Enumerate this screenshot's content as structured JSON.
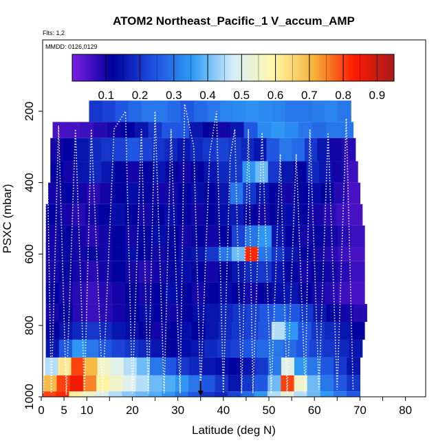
{
  "chart_data": {
    "type": "heatmap",
    "title": "ATOM2 Northeast_Pacific_1 V_accum_AMP",
    "flights_label": "Flts: 1,2",
    "dates_label": "MMDD: 0126,0129",
    "xlabel": "Latitude (deg N)",
    "ylabel": "PSXC (mbar)",
    "xlim": [
      0,
      85
    ],
    "ylim": [
      1000,
      0
    ],
    "x_ticks": [
      0,
      5,
      10,
      20,
      30,
      40,
      50,
      60,
      70,
      80
    ],
    "x_minor_ticks": [
      15,
      25,
      35,
      45,
      55,
      65,
      75
    ],
    "y_ticks": [
      200,
      400,
      600,
      800,
      1000
    ],
    "colorbar": {
      "range": [
        0.0,
        0.95
      ],
      "ticks": [
        0.1,
        0.2,
        0.3,
        0.4,
        0.5,
        0.6,
        0.7,
        0.8,
        0.9
      ],
      "colors": [
        "#7a1fe0",
        "#00009e",
        "#1e4fe0",
        "#2f9bf4",
        "#d6eefb",
        "#fff6a8",
        "#f5b33a",
        "#ff1a00",
        "#a81b1b"
      ]
    },
    "arrow_latitude": 35,
    "layers": [
      {
        "p_top": 170,
        "p_bot": 230,
        "x0": 10.5,
        "x1": 68.0,
        "values": [
          0.2,
          0.22,
          0.25,
          0.28,
          0.3,
          0.3,
          0.28,
          0.25,
          0.28,
          0.3,
          0.32,
          0.33,
          0.34,
          0.33,
          0.32,
          0.3,
          0.3,
          0.31,
          0.32,
          0.3
        ]
      },
      {
        "p_top": 230,
        "p_bot": 275,
        "x0": 2.5,
        "x1": 68.5,
        "values": [
          0.05,
          0.05,
          0.06,
          0.08,
          0.1,
          0.12,
          0.15,
          0.2,
          0.25,
          0.25,
          0.15,
          0.12,
          0.1,
          0.15,
          0.25,
          0.33,
          0.35,
          0.33,
          0.3,
          0.28,
          0.3,
          0.3
        ]
      },
      {
        "p_top": 275,
        "p_bot": 340,
        "x0": 2.0,
        "x1": 69.0,
        "values": [
          0.1,
          0.12,
          0.15,
          0.18,
          0.2,
          0.22,
          0.25,
          0.22,
          0.2,
          0.18,
          0.15,
          0.18,
          0.2,
          0.22,
          0.2,
          0.18,
          0.15,
          0.25,
          0.3,
          0.28,
          0.2,
          0.15,
          0.1,
          0.08
        ]
      },
      {
        "p_top": 340,
        "p_bot": 400,
        "x0": 2.0,
        "x1": 69.5,
        "values": [
          0.12,
          0.1,
          0.15,
          0.18,
          0.15,
          0.12,
          0.1,
          0.12,
          0.15,
          0.12,
          0.1,
          0.12,
          0.15,
          0.18,
          0.2,
          0.35,
          0.4,
          0.2,
          0.15,
          0.12,
          0.18,
          0.15,
          0.1,
          0.06
        ]
      },
      {
        "p_top": 400,
        "p_bot": 460,
        "x0": 1.5,
        "x1": 70.0,
        "values": [
          0.1,
          0.12,
          0.1,
          0.08,
          0.1,
          0.12,
          0.14,
          0.12,
          0.1,
          0.1,
          0.12,
          0.14,
          0.12,
          0.15,
          0.3,
          0.2,
          0.15,
          0.12,
          0.1,
          0.12,
          0.14,
          0.12,
          0.08,
          0.05
        ]
      },
      {
        "p_top": 460,
        "p_bot": 520,
        "x0": 1.0,
        "x1": 70.5,
        "values": [
          0.12,
          0.1,
          0.08,
          0.1,
          0.12,
          0.14,
          0.12,
          0.1,
          0.12,
          0.14,
          0.12,
          0.1,
          0.12,
          0.14,
          0.16,
          0.12,
          0.1,
          0.12,
          0.14,
          0.12,
          0.1,
          0.08,
          0.06,
          0.05
        ]
      },
      {
        "p_top": 520,
        "p_bot": 580,
        "x0": 1.0,
        "x1": 71.0,
        "values": [
          0.1,
          0.12,
          0.1,
          0.08,
          0.1,
          0.12,
          0.1,
          0.12,
          0.14,
          0.12,
          0.1,
          0.12,
          0.1,
          0.12,
          0.22,
          0.3,
          0.35,
          0.15,
          0.12,
          0.1,
          0.12,
          0.1,
          0.08,
          0.06
        ]
      },
      {
        "p_top": 580,
        "p_bot": 620,
        "x0": 1.0,
        "x1": 71.0,
        "values": [
          0.1,
          0.12,
          0.1,
          0.12,
          0.1,
          0.12,
          0.14,
          0.12,
          0.1,
          0.12,
          0.14,
          0.15,
          0.2,
          0.3,
          0.4,
          0.82,
          0.3,
          0.2,
          0.15,
          0.12,
          0.1,
          0.08,
          0.06,
          0.05
        ]
      },
      {
        "p_top": 620,
        "p_bot": 680,
        "x0": 1.0,
        "x1": 71.0,
        "values": [
          0.1,
          0.12,
          0.1,
          0.08,
          0.1,
          0.12,
          0.1,
          0.08,
          0.1,
          0.12,
          0.14,
          0.12,
          0.1,
          0.12,
          0.15,
          0.18,
          0.2,
          0.15,
          0.12,
          0.1,
          0.12,
          0.1,
          0.08,
          0.06
        ]
      },
      {
        "p_top": 680,
        "p_bot": 740,
        "x0": 1.0,
        "x1": 71.0,
        "values": [
          0.12,
          0.1,
          0.08,
          0.06,
          0.08,
          0.1,
          0.12,
          0.1,
          0.12,
          0.14,
          0.12,
          0.1,
          0.12,
          0.14,
          0.12,
          0.1,
          0.12,
          0.14,
          0.15,
          0.12,
          0.1,
          0.08,
          0.06,
          0.05
        ]
      },
      {
        "p_top": 740,
        "p_bot": 790,
        "x0": 1.0,
        "x1": 71.5,
        "values": [
          0.1,
          0.12,
          0.08,
          0.06,
          0.08,
          0.1,
          0.12,
          0.14,
          0.12,
          0.1,
          0.12,
          0.14,
          0.15,
          0.18,
          0.2,
          0.22,
          0.25,
          0.28,
          0.25,
          0.2,
          0.15,
          0.12,
          0.1,
          0.08
        ]
      },
      {
        "p_top": 790,
        "p_bot": 840,
        "x0": 1.0,
        "x1": 71.0,
        "values": [
          0.12,
          0.15,
          0.18,
          0.2,
          0.18,
          0.15,
          0.14,
          0.12,
          0.1,
          0.12,
          0.14,
          0.12,
          0.15,
          0.18,
          0.2,
          0.22,
          0.25,
          0.45,
          0.35,
          0.25,
          0.2,
          0.18,
          0.15,
          0.12
        ]
      },
      {
        "p_top": 840,
        "p_bot": 890,
        "x0": 1.0,
        "x1": 70.5,
        "values": [
          0.15,
          0.25,
          0.35,
          0.3,
          0.25,
          0.22,
          0.2,
          0.18,
          0.15,
          0.12,
          0.14,
          0.15,
          0.18,
          0.2,
          0.22,
          0.25,
          0.28,
          0.3,
          0.28,
          0.25,
          0.22,
          0.2,
          0.18,
          0.15
        ]
      },
      {
        "p_top": 890,
        "p_bot": 940,
        "x0": 0.8,
        "x1": 70.0,
        "values": [
          0.45,
          0.62,
          0.8,
          0.7,
          0.55,
          0.5,
          0.45,
          0.4,
          0.3,
          0.25,
          0.2,
          0.18,
          0.15,
          0.14,
          0.12,
          0.15,
          0.2,
          0.3,
          0.5,
          0.35,
          0.3,
          0.25,
          0.2,
          0.15
        ]
      },
      {
        "p_top": 940,
        "p_bot": 985,
        "x0": 0.5,
        "x1": 70.0,
        "values": [
          0.7,
          0.8,
          0.85,
          0.75,
          0.6,
          0.55,
          0.5,
          0.45,
          0.4,
          0.38,
          0.35,
          0.3,
          0.25,
          0.2,
          0.15,
          0.2,
          0.25,
          0.4,
          0.8,
          0.55,
          0.4,
          0.3,
          0.25,
          0.2
        ]
      },
      {
        "p_top": 985,
        "p_bot": 1000,
        "x0": 0.3,
        "x1": 70.0,
        "values": [
          0.8,
          0.82,
          0.6,
          0.55,
          0.5,
          0.45,
          0.42,
          0.4,
          0.38,
          0.35,
          0.3,
          0.25,
          0.2,
          0.18,
          0.22,
          0.28,
          0.35,
          0.45,
          0.52,
          0.45,
          0.4,
          0.35,
          0.3,
          0.25
        ]
      }
    ],
    "flight_track": [
      [
        0.5,
        990
      ],
      [
        1.2,
        240
      ],
      [
        2.2,
        990
      ],
      [
        3.8,
        240
      ],
      [
        5.5,
        995
      ],
      [
        7.5,
        250
      ],
      [
        9.5,
        990
      ],
      [
        11.0,
        250
      ],
      [
        13.5,
        990
      ],
      [
        16.0,
        250
      ],
      [
        18.5,
        200
      ],
      [
        20.0,
        990
      ],
      [
        22.0,
        250
      ],
      [
        23.5,
        990
      ],
      [
        25.0,
        200
      ],
      [
        27.0,
        990
      ],
      [
        28.5,
        250
      ],
      [
        30.5,
        990
      ],
      [
        31.5,
        180
      ],
      [
        33.5,
        300
      ],
      [
        35.0,
        980
      ],
      [
        37.0,
        320
      ],
      [
        38.5,
        200
      ],
      [
        40.0,
        990
      ],
      [
        41.5,
        330
      ],
      [
        42.5,
        250
      ],
      [
        44.0,
        990
      ],
      [
        45.5,
        250
      ],
      [
        46.5,
        990
      ],
      [
        48.5,
        260
      ],
      [
        50.5,
        990
      ],
      [
        52.5,
        320
      ],
      [
        54.0,
        990
      ],
      [
        56.0,
        320
      ],
      [
        58.0,
        990
      ],
      [
        59.0,
        250
      ],
      [
        61.0,
        980
      ],
      [
        63.0,
        260
      ],
      [
        65.0,
        980
      ],
      [
        67.0,
        220
      ],
      [
        68.5,
        980
      ]
    ]
  }
}
